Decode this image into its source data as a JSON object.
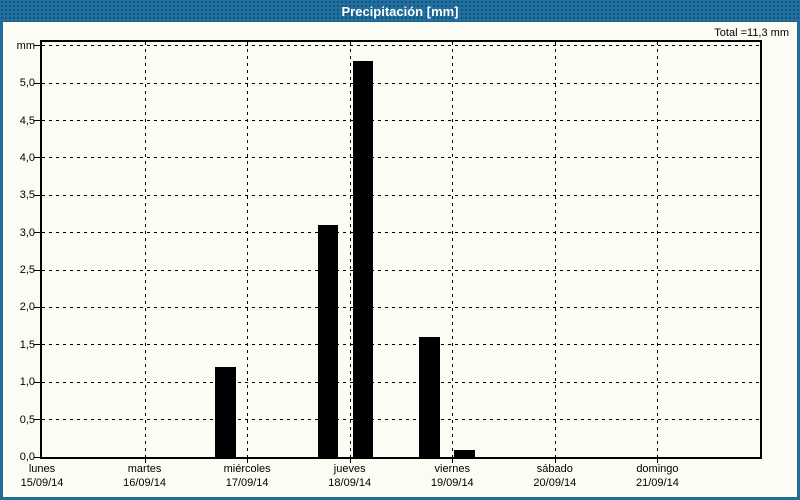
{
  "window": {
    "title": "Precipitación [mm]",
    "total_label": "Total =11,3 mm"
  },
  "colors": {
    "frame_blue": "#236b98",
    "titlebar_blue": "#2171a1",
    "background": "#fcfcf4",
    "bar_color": "#000000",
    "title_text": "#ffffff"
  },
  "chart_data": {
    "type": "bar",
    "title": "Precipitación [mm]",
    "total_mm": 11.3,
    "ylabel": "mm",
    "ylim": [
      0,
      5.55
    ],
    "grid": true,
    "grid_style": "dashed",
    "y_ticks": [
      {
        "value": 0.0,
        "label": "0,0"
      },
      {
        "value": 0.5,
        "label": "0,5"
      },
      {
        "value": 1.0,
        "label": "1,0"
      },
      {
        "value": 1.5,
        "label": "1,5"
      },
      {
        "value": 2.0,
        "label": "2,0"
      },
      {
        "value": 2.5,
        "label": "2,5"
      },
      {
        "value": 3.0,
        "label": "3,0"
      },
      {
        "value": 3.5,
        "label": "3,5"
      },
      {
        "value": 4.0,
        "label": "4,0"
      },
      {
        "value": 4.5,
        "label": "4,5"
      },
      {
        "value": 5.0,
        "label": "5,0"
      },
      {
        "value": 5.5,
        "label": "mm"
      }
    ],
    "x_span_days": 7,
    "x_days": [
      {
        "name": "lunes",
        "date": "15/09/14"
      },
      {
        "name": "martes",
        "date": "16/09/14"
      },
      {
        "name": "miércoles",
        "date": "17/09/14"
      },
      {
        "name": "jueves",
        "date": "18/09/14"
      },
      {
        "name": "viernes",
        "date": "19/09/14"
      },
      {
        "name": "sábado",
        "date": "20/09/14"
      },
      {
        "name": "domingo",
        "date": "21/09/14"
      }
    ],
    "bars": [
      {
        "day_offset": 1.69,
        "width_days": 0.2,
        "value": 1.2
      },
      {
        "day_offset": 2.69,
        "width_days": 0.2,
        "value": 3.1
      },
      {
        "day_offset": 3.03,
        "width_days": 0.2,
        "value": 5.3
      },
      {
        "day_offset": 3.68,
        "width_days": 0.2,
        "value": 1.6
      },
      {
        "day_offset": 4.02,
        "width_days": 0.2,
        "value": 0.1
      }
    ]
  }
}
